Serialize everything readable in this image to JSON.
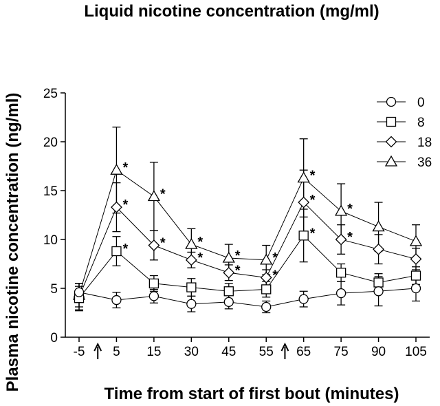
{
  "chart_data": {
    "type": "line",
    "title": "Liquid nicotine concentration (mg/ml)",
    "xlabel": "Time from start of first bout (minutes)",
    "ylabel": "Plasma nicotine concentration (ng/ml)",
    "categories": [
      "-5",
      "5",
      "15",
      "30",
      "45",
      "55",
      "65",
      "75",
      "90",
      "105"
    ],
    "ylim": [
      0,
      25
    ],
    "yticks": [
      "0",
      "5",
      "10",
      "15",
      "20",
      "25"
    ],
    "grid": false,
    "legend_position": "top-right",
    "bout_arrows": [
      "↑",
      "↑"
    ],
    "bout_arrow_positions": [
      0.5,
      5.5
    ],
    "series": [
      {
        "name": "0",
        "marker": "circle",
        "values": [
          4.6,
          3.8,
          4.2,
          3.4,
          3.6,
          3.1,
          3.9,
          4.5,
          4.7,
          5.0
        ],
        "errors": [
          0.9,
          0.8,
          0.7,
          0.8,
          0.7,
          0.6,
          0.8,
          1.2,
          1.5,
          1.3
        ],
        "significant": [
          false,
          false,
          false,
          false,
          false,
          false,
          false,
          false,
          false,
          false
        ]
      },
      {
        "name": "8",
        "marker": "square",
        "values": [
          4.0,
          8.8,
          5.5,
          5.1,
          4.7,
          4.9,
          10.4,
          6.6,
          5.6,
          6.3
        ],
        "errors": [
          1.2,
          1.5,
          0.8,
          0.9,
          0.8,
          0.8,
          2.7,
          0.9,
          0.9,
          0.9
        ],
        "significant": [
          false,
          true,
          false,
          false,
          false,
          false,
          true,
          false,
          false,
          false
        ]
      },
      {
        "name": "18",
        "marker": "diamond",
        "values": [
          4.1,
          13.3,
          9.4,
          7.9,
          6.6,
          6.1,
          13.8,
          10.0,
          9.0,
          8.0
        ],
        "errors": [
          1.4,
          2.5,
          1.5,
          0.8,
          0.8,
          0.8,
          3.3,
          1.5,
          1.5,
          1.1
        ],
        "significant": [
          false,
          true,
          true,
          true,
          true,
          true,
          true,
          true,
          false,
          false
        ]
      },
      {
        "name": "36",
        "marker": "triangle",
        "values": [
          4.3,
          17.1,
          14.4,
          9.5,
          8.1,
          7.9,
          16.3,
          12.9,
          11.3,
          9.8
        ],
        "errors": [
          1.2,
          4.4,
          3.5,
          1.6,
          1.4,
          1.5,
          4.0,
          2.8,
          2.5,
          1.7
        ],
        "significant": [
          false,
          true,
          true,
          true,
          true,
          true,
          true,
          true,
          false,
          false
        ]
      }
    ],
    "significance_mark": "*"
  }
}
